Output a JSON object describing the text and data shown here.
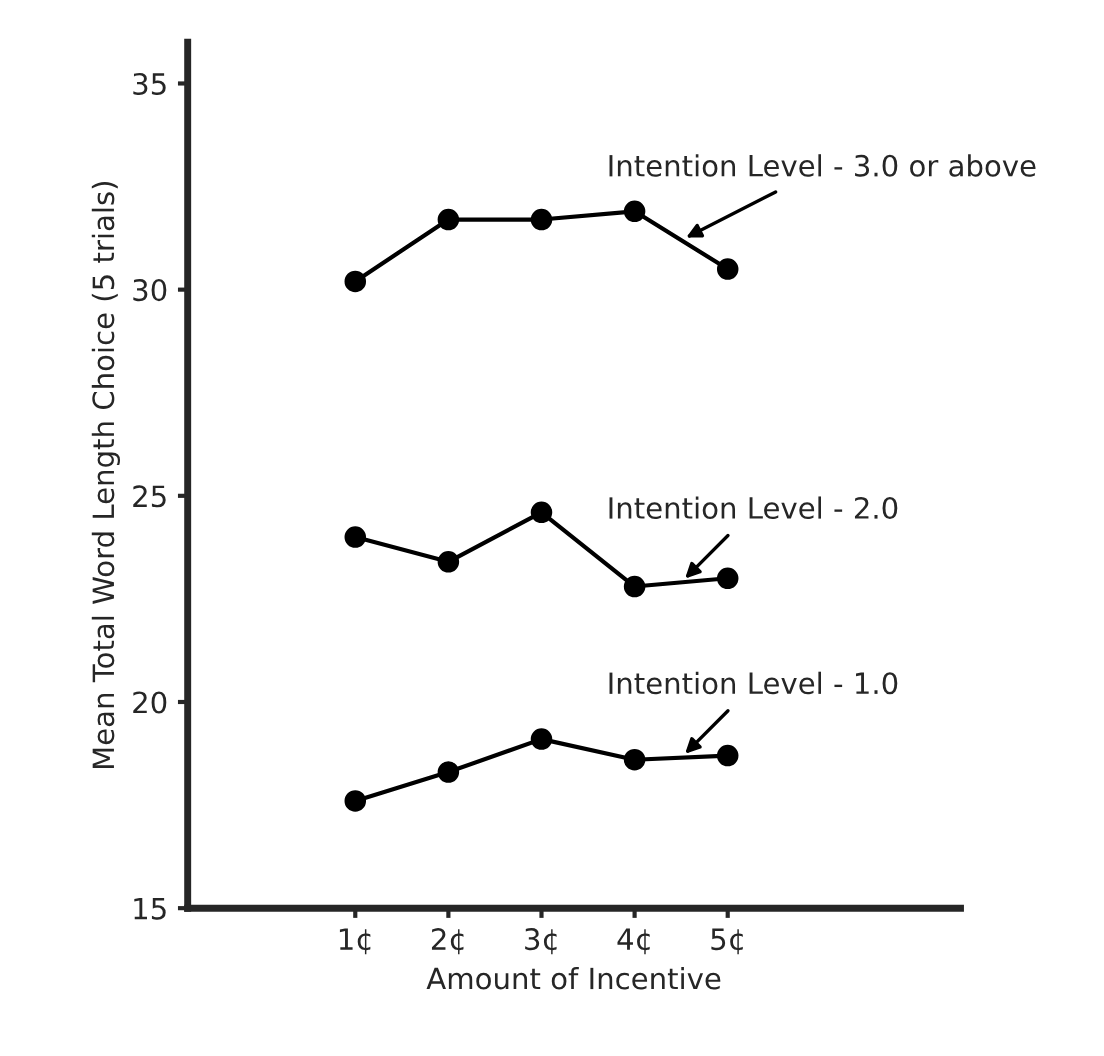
{
  "chart_data": {
    "type": "line",
    "xlabel": "Amount of Incentive",
    "ylabel": "Mean Total Word Length Choice (5 trials)",
    "categories": [
      "1¢",
      "2¢",
      "3¢",
      "4¢",
      "5¢"
    ],
    "series": [
      {
        "name": "Intention Level - 3.0 or above",
        "color": "#000000",
        "values": [
          30.2,
          31.7,
          31.7,
          31.9,
          30.5
        ]
      },
      {
        "name": "Intention Level - 2.0",
        "color": "#000000",
        "values": [
          24.0,
          23.4,
          24.6,
          22.8,
          23.0
        ]
      },
      {
        "name": "Intention Level - 1.0",
        "color": "#000000",
        "values": [
          17.6,
          18.3,
          19.1,
          18.6,
          18.7
        ]
      }
    ],
    "ylim": [
      15,
      36
    ],
    "yticks": [
      15,
      20,
      25,
      30,
      35
    ],
    "grid": false,
    "legend": false,
    "marker": "circle",
    "line_style": "solid"
  }
}
